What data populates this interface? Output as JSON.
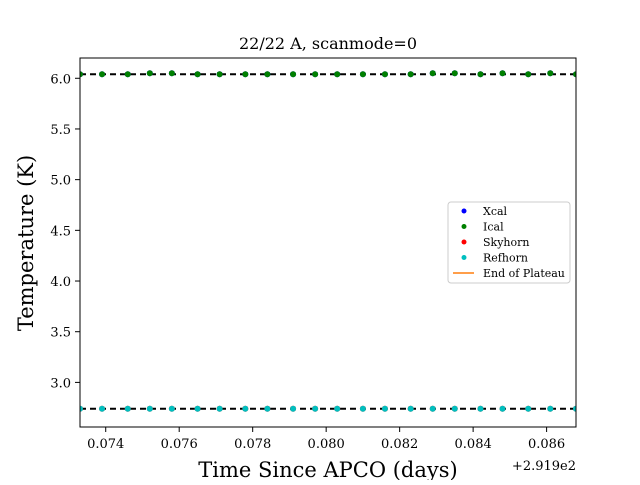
{
  "chart_data": {
    "type": "scatter",
    "title": "22/22 A, scanmode=0",
    "xlabel": "Time Since APCO (days)",
    "ylabel": "Temperature (K)",
    "x_offset_label": "+2.919e2",
    "x_offset": 291.9,
    "xlim": [
      0.0733,
      0.0868
    ],
    "ylim": [
      2.56,
      6.2
    ],
    "xticks": [
      0.074,
      0.076,
      0.078,
      0.08,
      0.082,
      0.084,
      0.086
    ],
    "xtick_labels": [
      "0.074",
      "0.076",
      "0.078",
      "0.080",
      "0.082",
      "0.084",
      "0.086"
    ],
    "yticks": [
      3.0,
      3.5,
      4.0,
      4.5,
      5.0,
      5.5,
      6.0
    ],
    "ytick_labels": [
      "3.0",
      "3.5",
      "4.0",
      "4.5",
      "5.0",
      "5.5",
      "6.0"
    ],
    "grid": false,
    "legend_position": "center-right",
    "x": [
      0.0733,
      0.0739,
      0.0746,
      0.0752,
      0.0758,
      0.0765,
      0.0771,
      0.0778,
      0.0784,
      0.0791,
      0.0797,
      0.0803,
      0.081,
      0.0816,
      0.0823,
      0.0829,
      0.0835,
      0.0842,
      0.0848,
      0.0855,
      0.0861,
      0.0868
    ],
    "series": [
      {
        "name": "Xcal",
        "color": "#0000ff",
        "values": [
          6.04,
          6.04,
          6.04,
          6.05,
          6.05,
          6.04,
          6.04,
          6.04,
          6.04,
          6.04,
          6.04,
          6.04,
          6.04,
          6.04,
          6.04,
          6.05,
          6.05,
          6.04,
          6.05,
          6.04,
          6.05,
          6.04
        ]
      },
      {
        "name": "Ical",
        "color": "#008000",
        "values": [
          6.04,
          6.04,
          6.04,
          6.05,
          6.05,
          6.04,
          6.04,
          6.04,
          6.04,
          6.04,
          6.04,
          6.04,
          6.04,
          6.04,
          6.04,
          6.05,
          6.05,
          6.04,
          6.05,
          6.04,
          6.05,
          6.04
        ]
      },
      {
        "name": "Skyhorn",
        "color": "#ff0000",
        "values": [
          2.74,
          2.74,
          2.74,
          2.74,
          2.74,
          2.74,
          2.74,
          2.74,
          2.74,
          2.74,
          2.74,
          2.74,
          2.74,
          2.74,
          2.74,
          2.74,
          2.74,
          2.74,
          2.74,
          2.74,
          2.74,
          2.74
        ]
      },
      {
        "name": "Refhorn",
        "color": "#00bfbf",
        "values": [
          2.74,
          2.74,
          2.74,
          2.74,
          2.74,
          2.74,
          2.74,
          2.74,
          2.74,
          2.74,
          2.74,
          2.74,
          2.74,
          2.74,
          2.74,
          2.74,
          2.74,
          2.74,
          2.74,
          2.74,
          2.74,
          2.74
        ]
      }
    ],
    "hlines": [
      {
        "y": 6.04,
        "color": "#000000",
        "style": "dashed"
      },
      {
        "y": 2.74,
        "color": "#000000",
        "style": "dashed"
      }
    ],
    "legend": [
      {
        "label": "Xcal",
        "kind": "marker",
        "color": "#0000ff"
      },
      {
        "label": "Ical",
        "kind": "marker",
        "color": "#008000"
      },
      {
        "label": "Skyhorn",
        "kind": "marker",
        "color": "#ff0000"
      },
      {
        "label": "Refhorn",
        "kind": "marker",
        "color": "#00bfbf"
      },
      {
        "label": "End of Plateau",
        "kind": "line",
        "color": "#ff7f0e"
      }
    ]
  }
}
